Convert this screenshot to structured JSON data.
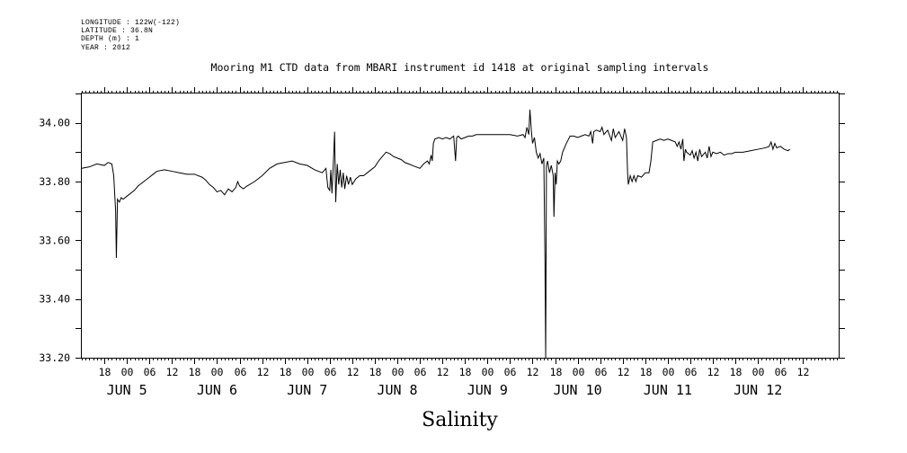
{
  "meta_lines": [
    "LONGITUDE : 122W(-122)",
    "LATITUDE : 36.8N",
    "DEPTH (m) : 1",
    "YEAR : 2012"
  ],
  "chart_data": {
    "type": "line",
    "title": "Mooring M1 CTD data from MBARI instrument id 1418 at original sampling intervals",
    "bottom_label": "Salinity",
    "xlabel": "",
    "ylabel": "",
    "x_unit": "hours since 2012-06-04 12:00 UTC",
    "xlim": [
      0,
      201.5
    ],
    "ylim": [
      33.2,
      34.1
    ],
    "y_ticks": [
      33.2,
      33.4,
      33.6,
      33.8,
      34.0
    ],
    "y_tick_labels": [
      "33.20",
      "33.40",
      "33.60",
      "33.80",
      "34.00"
    ],
    "hour_ticks": [
      {
        "x": 6,
        "label": "18"
      },
      {
        "x": 12,
        "label": "00"
      },
      {
        "x": 18,
        "label": "06"
      },
      {
        "x": 24,
        "label": "12"
      },
      {
        "x": 30,
        "label": "18"
      },
      {
        "x": 36,
        "label": "00"
      },
      {
        "x": 42,
        "label": "06"
      },
      {
        "x": 48,
        "label": "12"
      },
      {
        "x": 54,
        "label": "18"
      },
      {
        "x": 60,
        "label": "00"
      },
      {
        "x": 66,
        "label": "06"
      },
      {
        "x": 72,
        "label": "12"
      },
      {
        "x": 78,
        "label": "18"
      },
      {
        "x": 84,
        "label": "00"
      },
      {
        "x": 90,
        "label": "06"
      },
      {
        "x": 96,
        "label": "12"
      },
      {
        "x": 102,
        "label": "18"
      },
      {
        "x": 108,
        "label": "00"
      },
      {
        "x": 114,
        "label": "06"
      },
      {
        "x": 120,
        "label": "12"
      },
      {
        "x": 126,
        "label": "18"
      },
      {
        "x": 132,
        "label": "00"
      },
      {
        "x": 138,
        "label": "06"
      },
      {
        "x": 144,
        "label": "12"
      },
      {
        "x": 150,
        "label": "18"
      },
      {
        "x": 156,
        "label": "00"
      },
      {
        "x": 162,
        "label": "06"
      },
      {
        "x": 168,
        "label": "12"
      },
      {
        "x": 174,
        "label": "18"
      },
      {
        "x": 180,
        "label": "00"
      },
      {
        "x": 186,
        "label": "06"
      },
      {
        "x": 192,
        "label": "12"
      }
    ],
    "day_labels": [
      {
        "x": 12,
        "label": "JUN  5"
      },
      {
        "x": 36,
        "label": "JUN  6"
      },
      {
        "x": 60,
        "label": "JUN  7"
      },
      {
        "x": 84,
        "label": "JUN  8"
      },
      {
        "x": 108,
        "label": "JUN  9"
      },
      {
        "x": 132,
        "label": "JUN 10"
      },
      {
        "x": 156,
        "label": "JUN 11"
      },
      {
        "x": 180,
        "label": "JUN 12"
      }
    ],
    "series": [
      {
        "values": [
          [
            0,
            33.845
          ],
          [
            2,
            33.85
          ],
          [
            4,
            33.86
          ],
          [
            6,
            33.855
          ],
          [
            7,
            33.865
          ],
          [
            8,
            33.86
          ],
          [
            8.5,
            33.82
          ],
          [
            9,
            33.7
          ],
          [
            9.2,
            33.54
          ],
          [
            9.5,
            33.74
          ],
          [
            10,
            33.73
          ],
          [
            10.5,
            33.745
          ],
          [
            11,
            33.74
          ],
          [
            12,
            33.75
          ],
          [
            13,
            33.76
          ],
          [
            14,
            33.77
          ],
          [
            15,
            33.785
          ],
          [
            16,
            33.795
          ],
          [
            17,
            33.805
          ],
          [
            18,
            33.815
          ],
          [
            19,
            33.825
          ],
          [
            20,
            33.835
          ],
          [
            22,
            33.84
          ],
          [
            24,
            33.835
          ],
          [
            26,
            33.83
          ],
          [
            28,
            33.825
          ],
          [
            30,
            33.825
          ],
          [
            32,
            33.815
          ],
          [
            33,
            33.805
          ],
          [
            34,
            33.79
          ],
          [
            35,
            33.78
          ],
          [
            36,
            33.765
          ],
          [
            37,
            33.77
          ],
          [
            38,
            33.755
          ],
          [
            39,
            33.775
          ],
          [
            40,
            33.765
          ],
          [
            41,
            33.78
          ],
          [
            41.5,
            33.8
          ],
          [
            42,
            33.785
          ],
          [
            43,
            33.775
          ],
          [
            44,
            33.785
          ],
          [
            46,
            33.8
          ],
          [
            48,
            33.82
          ],
          [
            50,
            33.845
          ],
          [
            52,
            33.86
          ],
          [
            54,
            33.865
          ],
          [
            56,
            33.87
          ],
          [
            58,
            33.86
          ],
          [
            60,
            33.855
          ],
          [
            62,
            33.84
          ],
          [
            63,
            33.835
          ],
          [
            64,
            33.83
          ],
          [
            65,
            33.845
          ],
          [
            65.5,
            33.78
          ],
          [
            66,
            33.77
          ],
          [
            66.3,
            33.84
          ],
          [
            66.6,
            33.76
          ],
          [
            67,
            33.87
          ],
          [
            67.3,
            33.97
          ],
          [
            67.6,
            33.73
          ],
          [
            68,
            33.86
          ],
          [
            68.4,
            33.79
          ],
          [
            68.8,
            33.84
          ],
          [
            69.2,
            33.78
          ],
          [
            69.6,
            33.83
          ],
          [
            70,
            33.775
          ],
          [
            70.5,
            33.82
          ],
          [
            71,
            33.79
          ],
          [
            71.5,
            33.815
          ],
          [
            72,
            33.79
          ],
          [
            73,
            33.81
          ],
          [
            74,
            33.82
          ],
          [
            75,
            33.82
          ],
          [
            76,
            33.83
          ],
          [
            77,
            33.84
          ],
          [
            78,
            33.85
          ],
          [
            79,
            33.87
          ],
          [
            80,
            33.885
          ],
          [
            81,
            33.9
          ],
          [
            82,
            33.895
          ],
          [
            83,
            33.885
          ],
          [
            84,
            33.88
          ],
          [
            85,
            33.875
          ],
          [
            86,
            33.865
          ],
          [
            87,
            33.86
          ],
          [
            88,
            33.855
          ],
          [
            89,
            33.85
          ],
          [
            90,
            33.845
          ],
          [
            91,
            33.86
          ],
          [
            92,
            33.87
          ],
          [
            92.5,
            33.86
          ],
          [
            93,
            33.89
          ],
          [
            93.3,
            33.87
          ],
          [
            93.6,
            33.93
          ],
          [
            94,
            33.945
          ],
          [
            95,
            33.95
          ],
          [
            96,
            33.945
          ],
          [
            97,
            33.95
          ],
          [
            98,
            33.945
          ],
          [
            99,
            33.955
          ],
          [
            99.5,
            33.87
          ],
          [
            99.8,
            33.95
          ],
          [
            100.2,
            33.955
          ],
          [
            101,
            33.945
          ],
          [
            102,
            33.95
          ],
          [
            103,
            33.955
          ],
          [
            104,
            33.955
          ],
          [
            105,
            33.96
          ],
          [
            106,
            33.96
          ],
          [
            108,
            33.96
          ],
          [
            110,
            33.96
          ],
          [
            112,
            33.96
          ],
          [
            114,
            33.96
          ],
          [
            116,
            33.955
          ],
          [
            117.5,
            33.96
          ],
          [
            118,
            33.95
          ],
          [
            118.5,
            33.985
          ],
          [
            119,
            33.96
          ],
          [
            119.3,
            34.045
          ],
          [
            119.7,
            33.97
          ],
          [
            120,
            33.93
          ],
          [
            120.5,
            33.95
          ],
          [
            121,
            33.9
          ],
          [
            121.5,
            33.88
          ],
          [
            122,
            33.895
          ],
          [
            122.5,
            33.86
          ],
          [
            123,
            33.88
          ],
          [
            123.3,
            33.54
          ],
          [
            123.5,
            33.2
          ],
          [
            123.7,
            33.855
          ],
          [
            124,
            33.87
          ],
          [
            124.5,
            33.83
          ],
          [
            125,
            33.855
          ],
          [
            125.5,
            33.82
          ],
          [
            125.7,
            33.68
          ],
          [
            126,
            33.83
          ],
          [
            126.3,
            33.79
          ],
          [
            126.6,
            33.87
          ],
          [
            127,
            33.86
          ],
          [
            127.5,
            33.87
          ],
          [
            128,
            33.9
          ],
          [
            129,
            33.93
          ],
          [
            130,
            33.955
          ],
          [
            131,
            33.955
          ],
          [
            132,
            33.95
          ],
          [
            133,
            33.955
          ],
          [
            134,
            33.96
          ],
          [
            135,
            33.955
          ],
          [
            135.5,
            33.97
          ],
          [
            136,
            33.93
          ],
          [
            136.3,
            33.97
          ],
          [
            137,
            33.975
          ],
          [
            138,
            33.97
          ],
          [
            138.5,
            33.985
          ],
          [
            139,
            33.96
          ],
          [
            140,
            33.975
          ],
          [
            141,
            33.94
          ],
          [
            141.5,
            33.98
          ],
          [
            142,
            33.95
          ],
          [
            143,
            33.97
          ],
          [
            144,
            33.94
          ],
          [
            144.5,
            33.98
          ],
          [
            145,
            33.95
          ],
          [
            145.3,
            33.83
          ],
          [
            145.5,
            33.79
          ],
          [
            146,
            33.82
          ],
          [
            146.5,
            33.8
          ],
          [
            147,
            33.82
          ],
          [
            147.5,
            33.8
          ],
          [
            148,
            33.82
          ],
          [
            149,
            33.815
          ],
          [
            150,
            33.83
          ],
          [
            151,
            33.83
          ],
          [
            151.5,
            33.87
          ],
          [
            152,
            33.935
          ],
          [
            153,
            33.94
          ],
          [
            154,
            33.945
          ],
          [
            155,
            33.94
          ],
          [
            156,
            33.945
          ],
          [
            157,
            33.94
          ],
          [
            158,
            33.935
          ],
          [
            158.5,
            33.92
          ],
          [
            159,
            33.935
          ],
          [
            159.5,
            33.91
          ],
          [
            160,
            33.945
          ],
          [
            160.3,
            33.87
          ],
          [
            160.7,
            33.91
          ],
          [
            161,
            33.9
          ],
          [
            162,
            33.89
          ],
          [
            162.5,
            33.905
          ],
          [
            163,
            33.88
          ],
          [
            163.5,
            33.9
          ],
          [
            164,
            33.87
          ],
          [
            164.5,
            33.91
          ],
          [
            165,
            33.885
          ],
          [
            166,
            33.9
          ],
          [
            166.5,
            33.88
          ],
          [
            167,
            33.92
          ],
          [
            167.5,
            33.885
          ],
          [
            168,
            33.9
          ],
          [
            169,
            33.895
          ],
          [
            170,
            33.9
          ],
          [
            171,
            33.89
          ],
          [
            172,
            33.895
          ],
          [
            173,
            33.895
          ],
          [
            174,
            33.9
          ],
          [
            176,
            33.9
          ],
          [
            178,
            33.905
          ],
          [
            180,
            33.91
          ],
          [
            182,
            33.915
          ],
          [
            183,
            33.92
          ],
          [
            183.5,
            33.935
          ],
          [
            184,
            33.91
          ],
          [
            184.5,
            33.93
          ],
          [
            185,
            33.915
          ],
          [
            186,
            33.92
          ],
          [
            187,
            33.91
          ],
          [
            188,
            33.905
          ],
          [
            188.5,
            33.91
          ]
        ]
      }
    ]
  }
}
